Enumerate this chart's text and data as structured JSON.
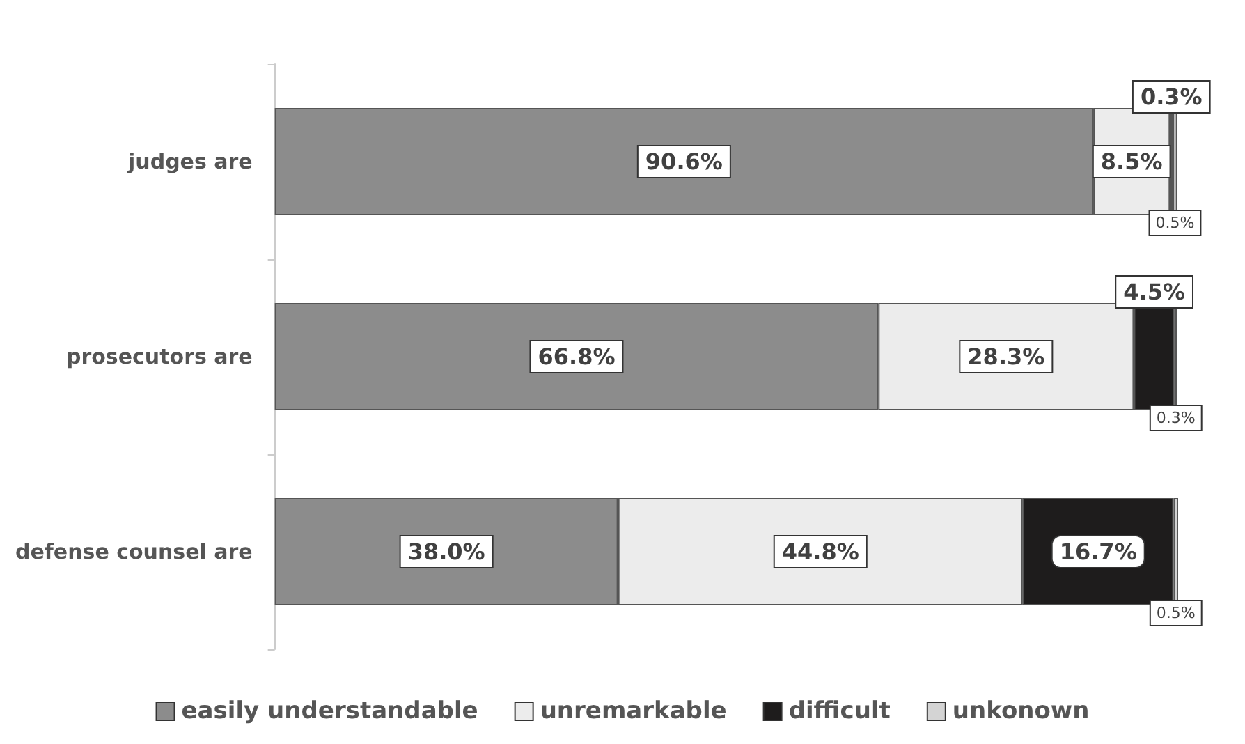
{
  "chart_data": {
    "type": "bar",
    "orientation": "horizontal",
    "stacked": true,
    "categories": [
      "judges are",
      "prosecutors are",
      "defense counsel are"
    ],
    "series": [
      {
        "name": "easily understandable",
        "color": "#8c8c8c",
        "values": [
          90.6,
          66.8,
          38.0
        ],
        "value_labels": [
          "90.6%",
          "66.8%",
          "38.0%"
        ]
      },
      {
        "name": "unremarkable",
        "color": "#ececec",
        "values": [
          8.5,
          28.3,
          44.8
        ],
        "value_labels": [
          "8.5%",
          "28.3%",
          "44.8%"
        ]
      },
      {
        "name": "difficult",
        "color": "#1e1c1c",
        "values": [
          0.3,
          4.5,
          16.7
        ],
        "value_labels": [
          "0.3%",
          "4.5%",
          "16.7%"
        ]
      },
      {
        "name": "unkonown",
        "color": "#d4d4d4",
        "values": [
          0.5,
          0.3,
          0.5
        ],
        "value_labels": [
          "0.5%",
          "0.3%",
          "0.5%"
        ]
      }
    ],
    "legend": "bottom"
  }
}
